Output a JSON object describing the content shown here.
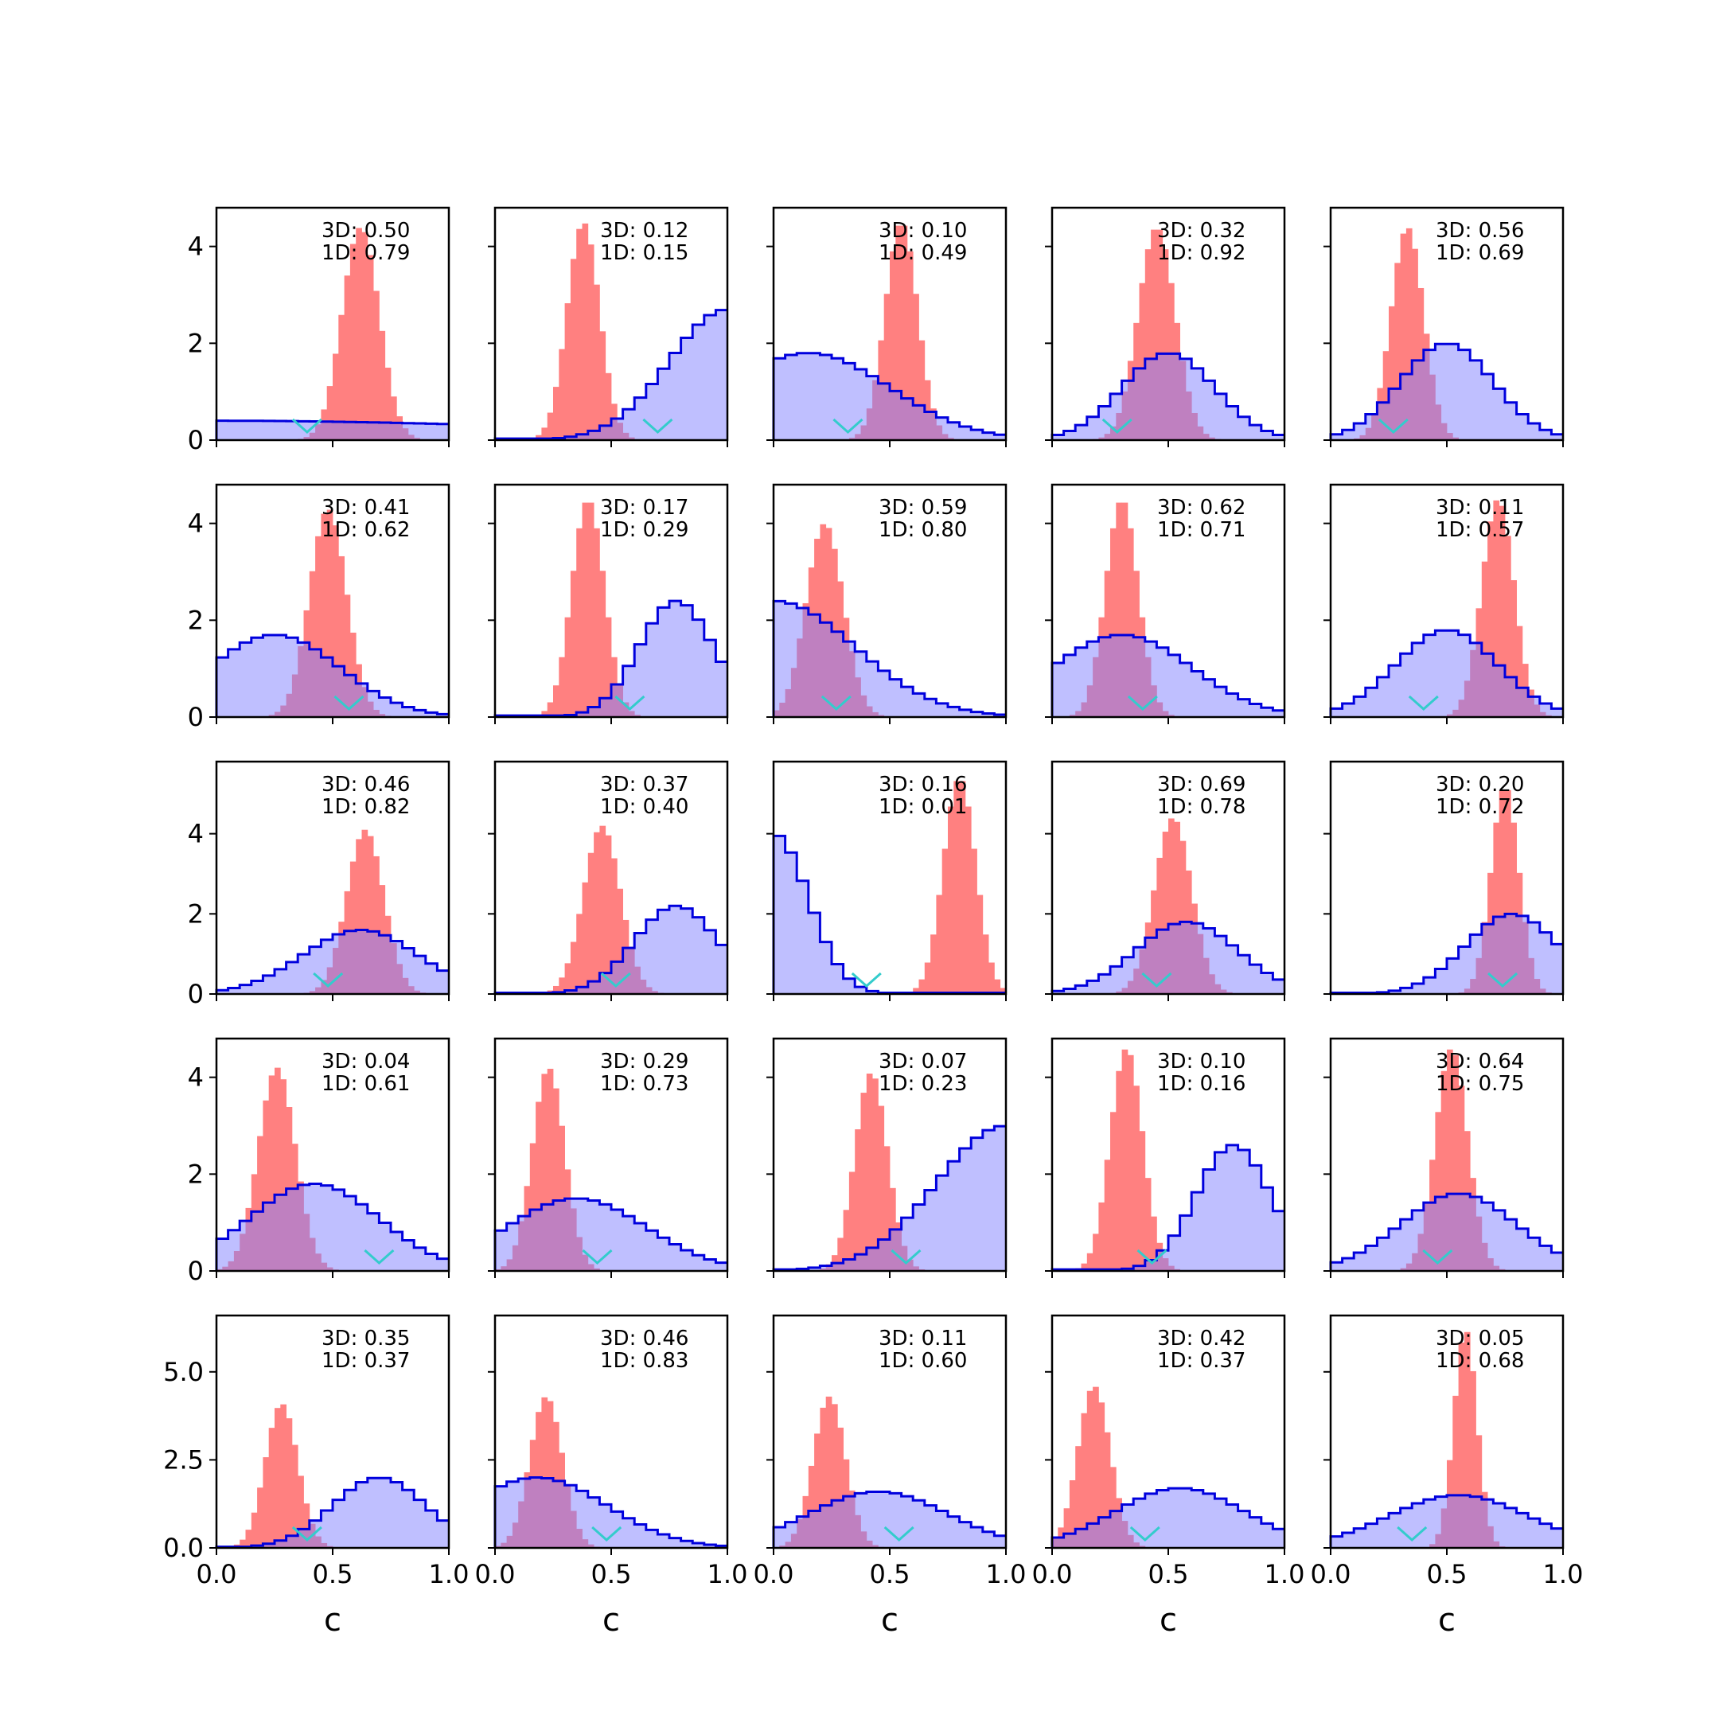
{
  "chart_data": {
    "type": "histogram-grid",
    "rows": 5,
    "cols": 5,
    "xlim": [
      0,
      1
    ],
    "xticks": [
      "0.0",
      "0.5",
      "1.0"
    ],
    "xlabel": "c",
    "row_ylim": [
      [
        0,
        4.8
      ],
      [
        0,
        4.8
      ],
      [
        0,
        5.8
      ],
      [
        0,
        4.8
      ],
      [
        0,
        6.6
      ]
    ],
    "row_yticks": [
      [
        "0",
        "2",
        "4"
      ],
      [
        "0",
        "2",
        "4"
      ],
      [
        "0",
        "2",
        "4"
      ],
      [
        "0",
        "2",
        "4"
      ],
      [
        "0.0",
        "2.5",
        "5.0"
      ]
    ],
    "colors": {
      "blue_fill": "#8080ff",
      "blue_edge": "#0000dd",
      "red_fill": "#ff8080",
      "marker": "#33cccc"
    },
    "panels": [
      {
        "ann": [
          "3D: 0.50",
          "1D: 0.79"
        ],
        "blue": [
          0.0,
          1.6,
          0.4
        ],
        "red": [
          0.62,
          0.08,
          4.4
        ],
        "marker": 0.39
      },
      {
        "ann": [
          "3D: 0.12",
          "1D: 0.15"
        ],
        "blue": [
          1.0,
          0.25,
          2.7
        ],
        "red": [
          0.38,
          0.07,
          4.5
        ],
        "marker": 0.7
      },
      {
        "ann": [
          "3D: 0.10",
          "1D: 0.49"
        ],
        "blue": [
          0.15,
          0.35,
          1.8
        ],
        "red": [
          0.55,
          0.07,
          4.5
        ],
        "marker": 0.32
      },
      {
        "ann": [
          "3D: 0.32",
          "1D: 0.92"
        ],
        "blue": [
          0.5,
          0.2,
          1.8
        ],
        "red": [
          0.45,
          0.08,
          4.4
        ],
        "marker": 0.28
      },
      {
        "ann": [
          "3D: 0.56",
          "1D: 0.69"
        ],
        "blue": [
          0.5,
          0.2,
          2.0
        ],
        "red": [
          0.33,
          0.07,
          4.4
        ],
        "marker": 0.27
      },
      {
        "ann": [
          "3D: 0.41",
          "1D: 0.62"
        ],
        "blue": [
          0.25,
          0.28,
          1.7
        ],
        "red": [
          0.48,
          0.08,
          4.3
        ],
        "marker": 0.57
      },
      {
        "ann": [
          "3D: 0.17",
          "1D: 0.29"
        ],
        "blue": [
          0.78,
          0.16,
          2.4
        ],
        "red": [
          0.4,
          0.07,
          4.5
        ],
        "marker": 0.58
      },
      {
        "ann": [
          "3D: 0.59",
          "1D: 0.80"
        ],
        "blue": [
          0.0,
          0.35,
          2.4
        ],
        "red": [
          0.22,
          0.08,
          4.0
        ],
        "marker": 0.27
      },
      {
        "ann": [
          "3D: 0.62",
          "1D: 0.71"
        ],
        "blue": [
          0.3,
          0.3,
          1.7
        ],
        "red": [
          0.3,
          0.07,
          4.5
        ],
        "marker": 0.39
      },
      {
        "ann": [
          "3D: 0.11",
          "1D: 0.57"
        ],
        "blue": [
          0.5,
          0.22,
          1.8
        ],
        "red": [
          0.72,
          0.07,
          4.5
        ],
        "marker": 0.4
      },
      {
        "ann": [
          "3D: 0.46",
          "1D: 0.82"
        ],
        "blue": [
          0.62,
          0.25,
          1.6
        ],
        "red": [
          0.64,
          0.08,
          4.1
        ],
        "marker": 0.48
      },
      {
        "ann": [
          "3D: 0.37",
          "1D: 0.40"
        ],
        "blue": [
          0.78,
          0.18,
          2.2
        ],
        "red": [
          0.46,
          0.08,
          4.2
        ],
        "marker": 0.52
      },
      {
        "ann": [
          "3D: 0.16",
          "1D: 0.01"
        ],
        "blue": [
          0.0,
          0.15,
          4.0
        ],
        "red": [
          0.8,
          0.07,
          5.4
        ],
        "marker": 0.4
      },
      {
        "ann": [
          "3D: 0.69",
          "1D: 0.78"
        ],
        "blue": [
          0.58,
          0.22,
          1.8
        ],
        "red": [
          0.52,
          0.08,
          4.4
        ],
        "marker": 0.45
      },
      {
        "ann": [
          "3D: 0.20",
          "1D: 0.72"
        ],
        "blue": [
          0.78,
          0.2,
          2.0
        ],
        "red": [
          0.75,
          0.06,
          5.2
        ],
        "marker": 0.74
      },
      {
        "ann": [
          "3D: 0.04",
          "1D: 0.61"
        ],
        "blue": [
          0.42,
          0.28,
          1.8
        ],
        "red": [
          0.26,
          0.08,
          4.2
        ],
        "marker": 0.7
      },
      {
        "ann": [
          "3D: 0.29",
          "1D: 0.73"
        ],
        "blue": [
          0.35,
          0.3,
          1.5
        ],
        "red": [
          0.23,
          0.07,
          4.2
        ],
        "marker": 0.44
      },
      {
        "ann": [
          "3D: 0.07",
          "1D: 0.23"
        ],
        "blue": [
          1.0,
          0.3,
          3.0
        ],
        "red": [
          0.42,
          0.07,
          4.1
        ],
        "marker": 0.57
      },
      {
        "ann": [
          "3D: 0.10",
          "1D: 0.16"
        ],
        "blue": [
          0.78,
          0.16,
          2.6
        ],
        "red": [
          0.32,
          0.07,
          4.6
        ],
        "marker": 0.43
      },
      {
        "ann": [
          "3D: 0.64",
          "1D: 0.75"
        ],
        "blue": [
          0.55,
          0.25,
          1.6
        ],
        "red": [
          0.52,
          0.07,
          4.6
        ],
        "marker": 0.46
      },
      {
        "ann": [
          "3D: 0.35",
          "1D: 0.37"
        ],
        "blue": [
          0.7,
          0.2,
          2.0
        ],
        "red": [
          0.28,
          0.07,
          4.1
        ],
        "marker": 0.39
      },
      {
        "ann": [
          "3D: 0.46",
          "1D: 0.83"
        ],
        "blue": [
          0.18,
          0.3,
          2.0
        ],
        "red": [
          0.22,
          0.07,
          4.3
        ],
        "marker": 0.48
      },
      {
        "ann": [
          "3D: 0.11",
          "1D: 0.60"
        ],
        "blue": [
          0.45,
          0.3,
          1.6
        ],
        "red": [
          0.24,
          0.07,
          4.3
        ],
        "marker": 0.54
      },
      {
        "ann": [
          "3D: 0.42",
          "1D: 0.37"
        ],
        "blue": [
          0.55,
          0.28,
          1.7
        ],
        "red": [
          0.18,
          0.07,
          4.6
        ],
        "marker": 0.4
      },
      {
        "ann": [
          "3D: 0.05",
          "1D: 0.68"
        ],
        "blue": [
          0.55,
          0.3,
          1.5
        ],
        "red": [
          0.58,
          0.05,
          6.2
        ],
        "marker": 0.35
      }
    ]
  }
}
